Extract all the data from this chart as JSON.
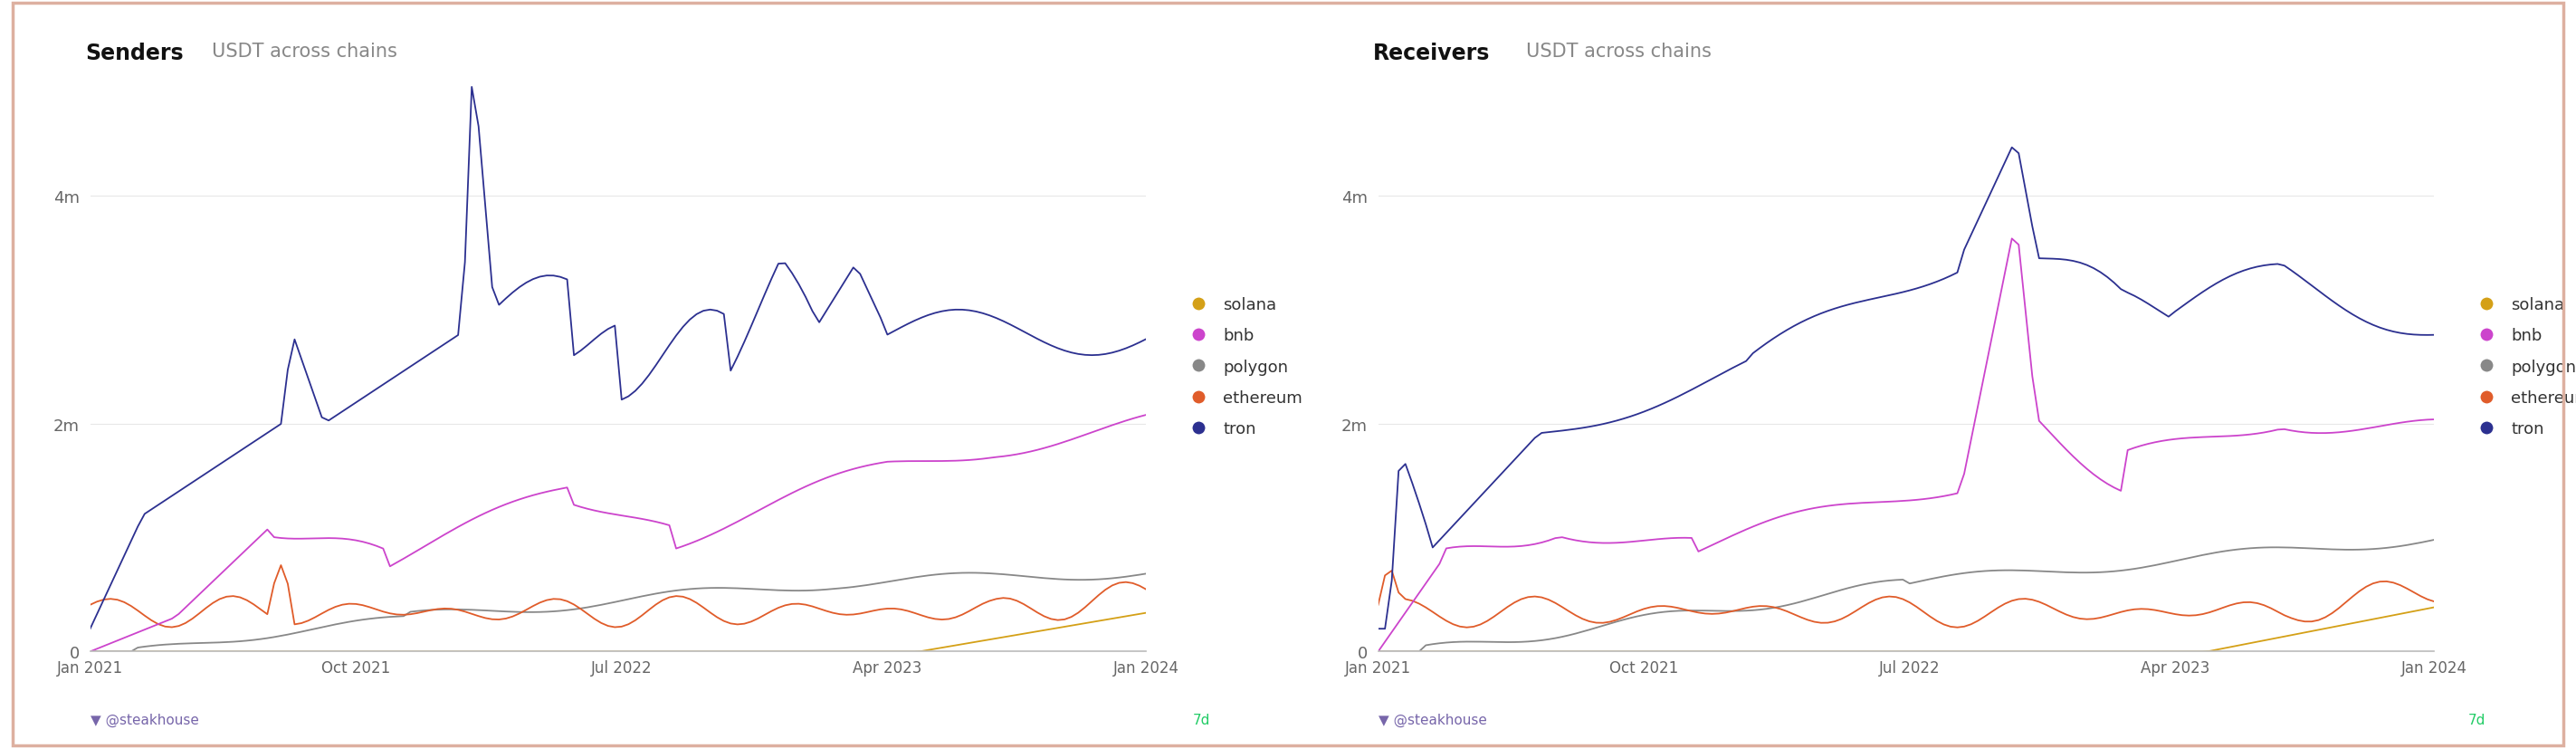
{
  "title_left": "Senders",
  "title_right": "Receivers",
  "subtitle": "USDT across chains",
  "background_color": "#ffffff",
  "border_color": "#e8c8b8",
  "legend_entries": [
    "solana",
    "bnb",
    "polygon",
    "ethereum",
    "tron"
  ],
  "legend_colors": [
    "#d4a017",
    "#cc44cc",
    "#888888",
    "#e05c2a",
    "#2c3090"
  ],
  "ylabel_ticks": [
    "0",
    "2m",
    "4m"
  ],
  "ytick_values": [
    0,
    2000000,
    4000000
  ],
  "ylim": [
    0,
    5000000
  ],
  "footer_left": "@steakhouse",
  "footer_right": "7d",
  "grid_color": "#e8e8e8",
  "x_tick_labels": [
    "Jan 2021",
    "Oct 2021",
    "Jul 2022",
    "Apr 2023",
    "Jan 2024"
  ],
  "x_tick_positions": [
    0,
    39,
    78,
    117,
    155
  ],
  "num_points": 156
}
